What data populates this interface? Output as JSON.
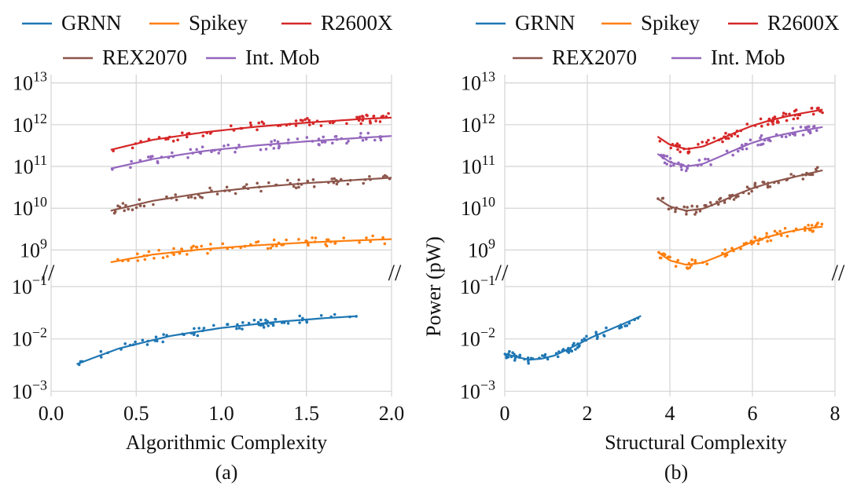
{
  "figure": {
    "legend": [
      {
        "name": "GRNN",
        "color": "#1f77b4"
      },
      {
        "name": "Spikey",
        "color": "#ff7f0e"
      },
      {
        "name": "R2600X",
        "color": "#d62728"
      },
      {
        "name": "REX2070",
        "color": "#8c564b"
      },
      {
        "name": "Int. Mob",
        "color": "#9467bd"
      }
    ],
    "break_mark": "//"
  },
  "chart_data": [
    {
      "type": "line",
      "panel_label": "(a)",
      "xlabel": "Algorithmic Complexity",
      "ylabel": "",
      "xlim": [
        0.0,
        2.0
      ],
      "xticks": [
        0.0,
        0.5,
        1.0,
        1.5,
        2.0
      ],
      "xtick_labels": [
        "0.0",
        "0.5",
        "1.0",
        "1.5",
        "2.0"
      ],
      "y_scale": "log",
      "y_axis_broken": true,
      "upper_ylim_exp": [
        8.5,
        13.2
      ],
      "lower_ylim_exp": [
        -3.1,
        -0.85
      ],
      "upper_ytick_exps": [
        9,
        10,
        11,
        12,
        13
      ],
      "lower_ytick_exps": [
        -3,
        -2,
        -1
      ],
      "grid": true,
      "series": [
        {
          "name": "GRNN",
          "x": [
            0.15,
            0.4,
            0.7,
            1.0,
            1.3,
            1.6,
            1.8
          ],
          "y": [
            0.0033,
            0.0066,
            0.0114,
            0.0162,
            0.0208,
            0.0249,
            0.0272
          ]
        },
        {
          "name": "Spikey",
          "x": [
            0.35,
            0.6,
            0.9,
            1.2,
            1.5,
            1.8,
            2.0
          ],
          "y": [
            510000000,
            780000000,
            1050000000,
            1290000000,
            1510000000,
            1700000000,
            1820000000
          ]
        },
        {
          "name": "REX2070",
          "x": [
            0.35,
            0.6,
            0.9,
            1.2,
            1.5,
            1.8,
            2.0
          ],
          "y": [
            8700000000,
            15100000000,
            23400000000,
            31600000000,
            39800000000,
            47900000000,
            53700000000
          ]
        },
        {
          "name": "Int. Mob",
          "x": [
            0.35,
            0.6,
            0.9,
            1.2,
            1.5,
            1.8,
            2.0
          ],
          "y": [
            89000000000,
            151000000000,
            234000000000,
            316000000000,
            398000000000,
            479000000000,
            537000000000
          ]
        },
        {
          "name": "R2600X",
          "x": [
            0.35,
            0.6,
            0.9,
            1.2,
            1.5,
            1.8,
            2.0
          ],
          "y": [
            251000000000,
            437000000000,
            661000000000,
            891000000000,
            1120000000000,
            1350000000000,
            1480000000000
          ]
        }
      ]
    },
    {
      "type": "line",
      "panel_label": "(b)",
      "xlabel": "Structural Complexity",
      "ylabel": "Power (pW)",
      "xlim": [
        0,
        8
      ],
      "xticks": [
        0,
        2,
        4,
        6,
        8
      ],
      "xtick_labels": [
        "0",
        "2",
        "4",
        "6",
        "8"
      ],
      "y_scale": "log",
      "y_axis_broken": true,
      "upper_ylim_exp": [
        8.5,
        13.2
      ],
      "lower_ylim_exp": [
        -3.1,
        -0.85
      ],
      "upper_ytick_exps": [
        9,
        10,
        11,
        12,
        13
      ],
      "lower_ytick_exps": [
        -3,
        -2,
        -1
      ],
      "grid": true,
      "series": [
        {
          "name": "GRNN",
          "x": [
            0.0,
            0.3,
            0.6,
            0.9,
            1.2,
            1.5,
            1.8,
            2.1,
            2.4,
            2.7,
            3.0,
            3.3
          ],
          "y": [
            0.0052,
            0.0045,
            0.004,
            0.0042,
            0.0048,
            0.0062,
            0.0081,
            0.0107,
            0.0135,
            0.017,
            0.0214,
            0.0275
          ]
        },
        {
          "name": "Spikey",
          "x": [
            3.7,
            4.0,
            4.4,
            4.8,
            5.2,
            5.6,
            6.0,
            6.4,
            6.8,
            7.2,
            7.7
          ],
          "y": [
            900000000,
            560000000,
            440000000,
            500000000,
            720000000,
            1070000000,
            1580000000,
            2090000000,
            2630000000,
            3160000000,
            3630000000
          ]
        },
        {
          "name": "REX2070",
          "x": [
            3.7,
            4.0,
            4.4,
            4.8,
            5.2,
            5.6,
            6.0,
            6.4,
            6.8,
            7.2,
            7.7
          ],
          "y": [
            17000000000,
            11000000000,
            8700000000,
            9700000000,
            14000000000,
            21000000000,
            30000000000,
            40000000000,
            50000000000,
            62000000000,
            81000000000
          ]
        },
        {
          "name": "Int. Mob",
          "x": [
            3.7,
            4.0,
            4.4,
            4.8,
            5.2,
            5.6,
            6.0,
            6.4,
            6.8,
            7.2,
            7.7
          ],
          "y": [
            200000000000,
            127000000000,
            100000000000,
            115000000000,
            170000000000,
            255000000000,
            370000000000,
            490000000000,
            600000000000,
            720000000000,
            880000000000
          ]
        },
        {
          "name": "R2600X",
          "x": [
            3.7,
            4.0,
            4.4,
            4.8,
            5.2,
            5.6,
            6.0,
            6.4,
            6.8,
            7.2,
            7.7
          ],
          "y": [
            520000000000,
            330000000000,
            260000000000,
            300000000000,
            440000000000,
            660000000000,
            950000000000,
            1250000000000,
            1560000000000,
            1880000000000,
            2300000000000
          ]
        }
      ]
    }
  ]
}
